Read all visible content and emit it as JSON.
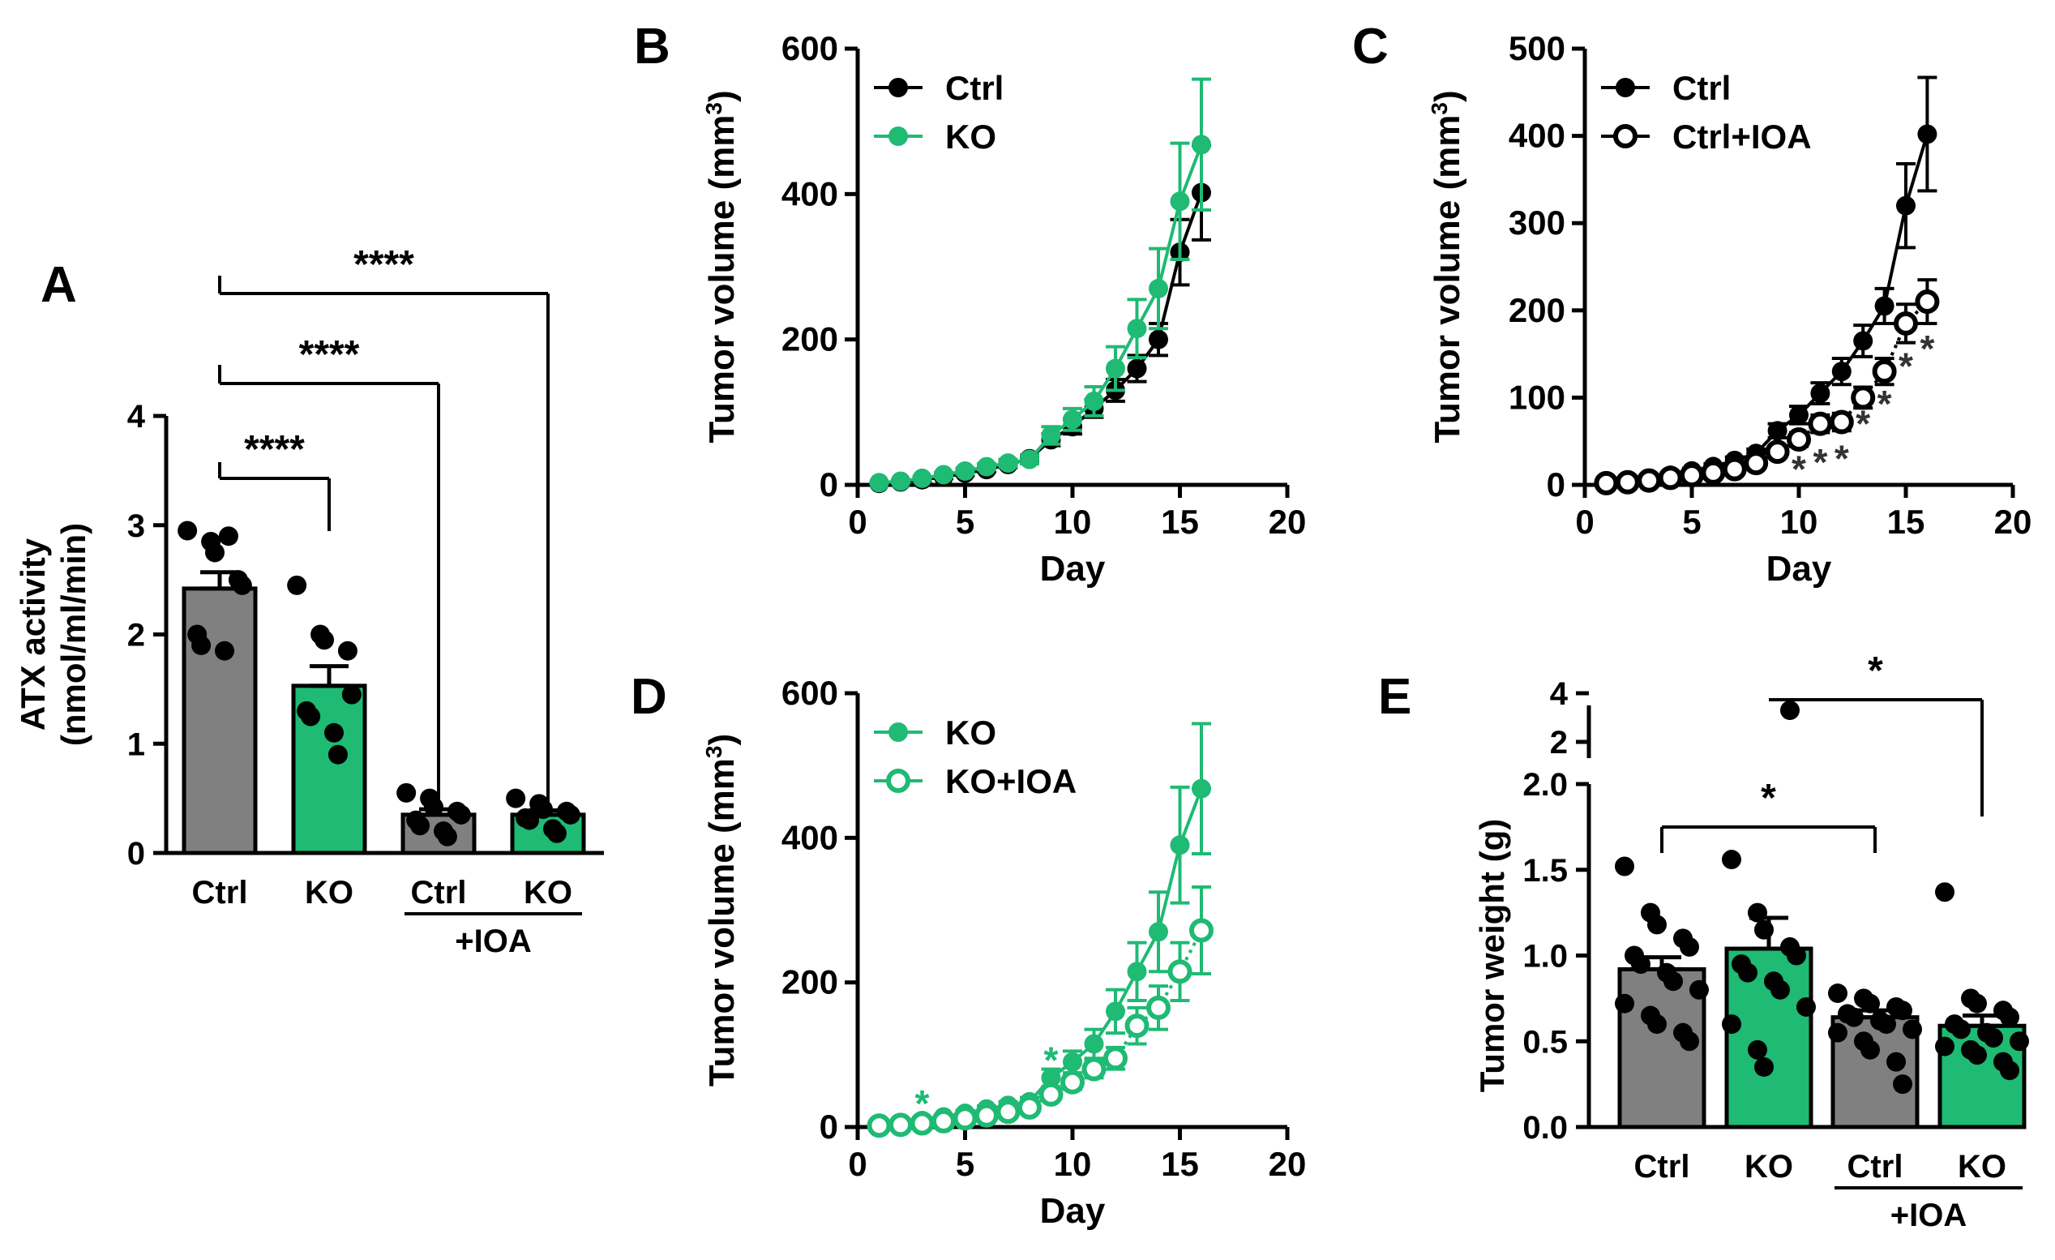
{
  "colors": {
    "ctrl": "#808080",
    "ko": "#1fba73",
    "black": "#000000"
  },
  "chart_data": [
    {
      "panel": "A",
      "type": "bar",
      "ylabel": [
        "ATX activity",
        "(nmol/ml/min)"
      ],
      "ylim": [
        0,
        4
      ],
      "yticks": [
        0,
        1,
        2,
        3,
        4
      ],
      "categories": [
        "Ctrl",
        "KO",
        "Ctrl",
        "KO"
      ],
      "group_label": "+IOA",
      "values": [
        2.42,
        1.53,
        0.35,
        0.35
      ],
      "errors": [
        0.15,
        0.18,
        0.05,
        0.04
      ],
      "fills": [
        "ctrl",
        "ko",
        "ctrl",
        "ko"
      ],
      "points": [
        [
          2.95,
          2.85,
          2.75,
          2.5,
          2.45,
          2.0,
          1.9,
          1.85,
          2.9
        ],
        [
          2.45,
          2.0,
          1.95,
          1.85,
          1.45,
          1.3,
          1.25,
          1.1,
          0.9
        ],
        [
          0.55,
          0.5,
          0.42,
          0.38,
          0.35,
          0.3,
          0.25,
          0.2,
          0.15
        ],
        [
          0.5,
          0.45,
          0.4,
          0.38,
          0.35,
          0.32,
          0.3,
          0.22,
          0.18
        ]
      ],
      "comparisons": [
        {
          "from": 0,
          "to": 1,
          "label": "****"
        },
        {
          "from": 0,
          "to": 2,
          "label": "****"
        },
        {
          "from": 0,
          "to": 3,
          "label": "****"
        }
      ]
    },
    {
      "panel": "B",
      "type": "line",
      "xlabel": "Day",
      "ylabel": "Tumor volume (mm",
      "ylabel_sup": "3",
      "ylabel_end": ")",
      "xlim": [
        0,
        20
      ],
      "ylim": [
        0,
        600
      ],
      "xticks": [
        0,
        5,
        10,
        15,
        20
      ],
      "yticks": [
        0,
        200,
        400,
        600
      ],
      "x": [
        1,
        2,
        3,
        4,
        5,
        6,
        7,
        8,
        9,
        10,
        11,
        12,
        13,
        14,
        15,
        16
      ],
      "series": [
        {
          "name": "Ctrl",
          "color": "black",
          "open": false,
          "values": [
            2,
            4,
            7,
            11,
            16,
            21,
            28,
            36,
            62,
            80,
            105,
            130,
            160,
            200,
            320,
            402
          ],
          "errors": [
            1,
            1,
            2,
            2,
            3,
            3,
            4,
            5,
            8,
            10,
            12,
            15,
            18,
            22,
            45,
            65
          ]
        },
        {
          "name": "KO",
          "color": "ko",
          "open": false,
          "values": [
            3,
            5,
            9,
            14,
            19,
            25,
            30,
            35,
            68,
            90,
            115,
            160,
            215,
            270,
            390,
            468
          ],
          "errors": [
            1,
            2,
            2,
            3,
            4,
            4,
            5,
            6,
            12,
            15,
            20,
            30,
            40,
            55,
            80,
            90
          ]
        }
      ]
    },
    {
      "panel": "C",
      "type": "line",
      "xlabel": "Day",
      "ylabel": "Tumor volume (mm",
      "ylabel_sup": "3",
      "ylabel_end": ")",
      "xlim": [
        0,
        20
      ],
      "ylim": [
        0,
        500
      ],
      "xticks": [
        0,
        5,
        10,
        15,
        20
      ],
      "yticks": [
        0,
        100,
        200,
        300,
        400,
        500
      ],
      "x": [
        1,
        2,
        3,
        4,
        5,
        6,
        7,
        8,
        9,
        10,
        11,
        12,
        13,
        14,
        15,
        16
      ],
      "series": [
        {
          "name": "Ctrl",
          "color": "black",
          "open": false,
          "values": [
            2,
            4,
            7,
            11,
            16,
            21,
            28,
            36,
            62,
            80,
            105,
            130,
            165,
            205,
            320,
            402
          ],
          "errors": [
            1,
            1,
            2,
            2,
            3,
            3,
            4,
            5,
            8,
            10,
            12,
            15,
            18,
            20,
            48,
            65
          ]
        },
        {
          "name": "Ctrl+IOA",
          "color": "black",
          "open": true,
          "values": [
            2,
            3,
            5,
            8,
            11,
            14,
            18,
            25,
            38,
            52,
            70,
            72,
            100,
            130,
            185,
            210
          ],
          "errors": [
            1,
            1,
            1,
            2,
            2,
            3,
            3,
            4,
            6,
            8,
            10,
            10,
            12,
            15,
            22,
            25
          ]
        }
      ],
      "stars": [
        {
          "x": 10,
          "y": 20,
          "label": "*"
        },
        {
          "x": 11,
          "y": 28,
          "label": "*"
        },
        {
          "x": 12,
          "y": 32,
          "label": "*"
        },
        {
          "x": 13,
          "y": 72,
          "label": "*"
        },
        {
          "x": 14,
          "y": 95,
          "label": "*"
        },
        {
          "x": 15,
          "y": 138,
          "label": "*"
        },
        {
          "x": 16,
          "y": 158,
          "label": "*"
        }
      ]
    },
    {
      "panel": "D",
      "type": "line",
      "xlabel": "Day",
      "ylabel": "Tumor volume (mm",
      "ylabel_sup": "3",
      "ylabel_end": ")",
      "xlim": [
        0,
        20
      ],
      "ylim": [
        0,
        600
      ],
      "xticks": [
        0,
        5,
        10,
        15,
        20
      ],
      "yticks": [
        0,
        200,
        400,
        600
      ],
      "x": [
        1,
        2,
        3,
        4,
        5,
        6,
        7,
        8,
        9,
        10,
        11,
        12,
        13,
        14,
        15,
        16
      ],
      "series": [
        {
          "name": "KO",
          "color": "ko",
          "open": false,
          "values": [
            3,
            5,
            9,
            14,
            19,
            25,
            30,
            35,
            68,
            90,
            115,
            160,
            215,
            270,
            390,
            468
          ],
          "errors": [
            1,
            2,
            2,
            3,
            4,
            4,
            5,
            6,
            12,
            15,
            20,
            30,
            40,
            55,
            80,
            90
          ]
        },
        {
          "name": "KO+IOA",
          "color": "ko",
          "open": true,
          "values": [
            2,
            3,
            5,
            8,
            12,
            16,
            21,
            27,
            45,
            62,
            80,
            95,
            140,
            165,
            215,
            272
          ],
          "errors": [
            1,
            1,
            2,
            2,
            3,
            3,
            4,
            5,
            8,
            10,
            12,
            15,
            25,
            30,
            40,
            60
          ]
        }
      ],
      "stars": [
        {
          "x": 3,
          "y": 35,
          "label": "*"
        },
        {
          "x": 9,
          "y": 95,
          "label": "*"
        }
      ]
    },
    {
      "panel": "E",
      "type": "bar",
      "ylabel": "Tumor weight (g)",
      "ylim": [
        0,
        2.0
      ],
      "yticks": [
        "0.0",
        "0.5",
        "1.0",
        "1.5",
        "2.0"
      ],
      "upper_ticks": [
        "2",
        "4"
      ],
      "categories": [
        "Ctrl",
        "KO",
        "Ctrl",
        "KO"
      ],
      "group_label": "+IOA",
      "values": [
        0.92,
        1.04,
        0.64,
        0.59
      ],
      "errors": [
        0.07,
        0.18,
        0.04,
        0.06
      ],
      "fills": [
        "ctrl",
        "ko",
        "ctrl",
        "ko"
      ],
      "points": [
        [
          1.52,
          1.25,
          1.18,
          1.1,
          1.05,
          1.0,
          0.95,
          0.9,
          0.85,
          0.8,
          0.72,
          0.65,
          0.6,
          0.55,
          0.5
        ],
        [
          1.56,
          1.25,
          1.15,
          1.05,
          1.0,
          0.95,
          0.9,
          0.85,
          0.8,
          0.7,
          0.6,
          0.45,
          0.35,
          3.3
        ],
        [
          0.78,
          0.75,
          0.72,
          0.7,
          0.68,
          0.66,
          0.64,
          0.62,
          0.6,
          0.57,
          0.55,
          0.5,
          0.45,
          0.38,
          0.25
        ],
        [
          1.37,
          0.75,
          0.72,
          0.68,
          0.64,
          0.6,
          0.57,
          0.55,
          0.52,
          0.5,
          0.47,
          0.45,
          0.42,
          0.38,
          0.33
        ]
      ],
      "comparisons": [
        {
          "from": 0,
          "to": 2,
          "label": "*"
        },
        {
          "from": 1,
          "to": 3,
          "label": "*"
        }
      ]
    }
  ]
}
